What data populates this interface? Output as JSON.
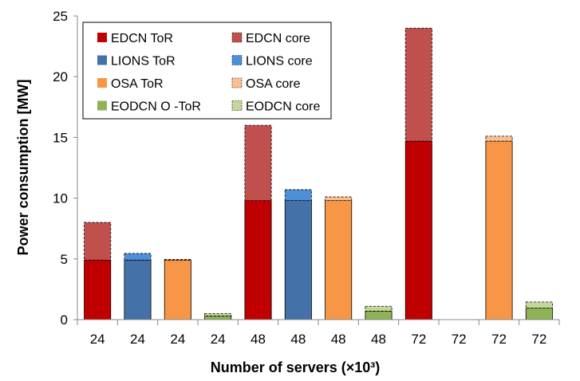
{
  "chart_data": {
    "type": "bar",
    "stacked": true,
    "title": "",
    "xlabel": "Number of servers (×10³)",
    "ylabel": "Power consumption [MW]",
    "ylim": [
      0,
      25
    ],
    "yticks": [
      0,
      5,
      10,
      15,
      20,
      25
    ],
    "grid": false,
    "legend_position": "top-left",
    "categories": [
      "24",
      "24",
      "24",
      "24",
      "48",
      "48",
      "48",
      "48",
      "72",
      "72",
      "72",
      "72"
    ],
    "bars": [
      {
        "tor_series": "EDCN ToR",
        "core_series": "EDCN core",
        "tor": 4.9,
        "core": 3.1
      },
      {
        "tor_series": "LIONS ToR",
        "core_series": "LIONS core",
        "tor": 4.9,
        "core": 0.55
      },
      {
        "tor_series": "OSA ToR",
        "core_series": "OSA core",
        "tor": 4.9,
        "core": 0.05
      },
      {
        "tor_series": "EODCN O -ToR",
        "core_series": "EODCN core",
        "tor": 0.3,
        "core": 0.2
      },
      {
        "tor_series": "EDCN ToR",
        "core_series": "EDCN core",
        "tor": 9.8,
        "core": 6.2
      },
      {
        "tor_series": "LIONS ToR",
        "core_series": "LIONS core",
        "tor": 9.8,
        "core": 0.9
      },
      {
        "tor_series": "OSA ToR",
        "core_series": "OSA core",
        "tor": 9.8,
        "core": 0.3
      },
      {
        "tor_series": "EODCN O -ToR",
        "core_series": "EODCN core",
        "tor": 0.7,
        "core": 0.4
      },
      {
        "tor_series": "EDCN ToR",
        "core_series": "EDCN core",
        "tor": 14.7,
        "core": 9.3
      },
      {
        "tor_series": "LIONS ToR",
        "core_series": "LIONS core",
        "tor": 0,
        "core": 0
      },
      {
        "tor_series": "OSA ToR",
        "core_series": "OSA core",
        "tor": 14.7,
        "core": 0.4
      },
      {
        "tor_series": "EODCN O -ToR",
        "core_series": "EODCN core",
        "tor": 0.95,
        "core": 0.5
      }
    ],
    "legend": [
      {
        "name": "EDCN ToR",
        "color": "#c00000",
        "dashed": false
      },
      {
        "name": "EDCN core",
        "color": "#c0504d",
        "dashed": true
      },
      {
        "name": "LIONS ToR",
        "color": "#4472a8",
        "dashed": false
      },
      {
        "name": "LIONS core",
        "color": "#4e8fd8",
        "dashed": true
      },
      {
        "name": "OSA ToR",
        "color": "#f79646",
        "dashed": false
      },
      {
        "name": "OSA core",
        "color": "#fac090",
        "dashed": true
      },
      {
        "name": "EODCN O -ToR",
        "color": "#8db356",
        "dashed": false
      },
      {
        "name": "EODCN core",
        "color": "#c3d69b",
        "dashed": true
      }
    ]
  }
}
